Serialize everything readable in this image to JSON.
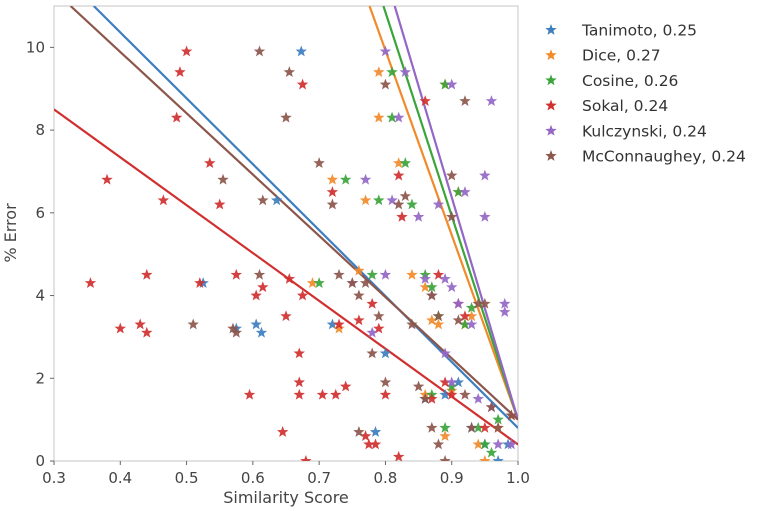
{
  "chart_data": {
    "type": "scatter",
    "title": "",
    "xlabel": "Similarity Score",
    "ylabel": "% Error",
    "xlim": [
      0.3,
      1.0
    ],
    "ylim": [
      0,
      11
    ],
    "xticks": [
      0.3,
      0.4,
      0.5,
      0.6,
      0.7,
      0.8,
      0.9,
      1.0
    ],
    "xtick_labels": [
      "0.3",
      "0.4",
      "0.5",
      "0.6",
      "0.7",
      "0.8",
      "0.9",
      "1.0"
    ],
    "yticks": [
      0,
      2,
      4,
      6,
      8,
      10
    ],
    "ytick_labels": [
      "0",
      "2",
      "4",
      "6",
      "8",
      "10"
    ],
    "grid": false,
    "legend_position": "right, outside",
    "marker": "star",
    "series": [
      {
        "name": "Tanimoto",
        "legend_label": "Tanimoto, 0.25",
        "color": "#3d7ebf",
        "fit_line": [
          [
            0.36,
            11.0
          ],
          [
            1.0,
            0.8
          ]
        ],
        "points": [
          [
            0.525,
            4.3
          ],
          [
            0.575,
            3.2
          ],
          [
            0.605,
            3.3
          ],
          [
            0.613,
            3.1
          ],
          [
            0.636,
            6.3
          ],
          [
            0.673,
            9.9
          ],
          [
            0.72,
            3.3
          ],
          [
            0.785,
            0.7
          ],
          [
            0.8,
            2.6
          ],
          [
            0.86,
            1.5
          ],
          [
            0.89,
            1.6
          ],
          [
            0.91,
            1.9
          ],
          [
            0.93,
            0.8
          ],
          [
            0.95,
            0.4
          ],
          [
            0.97,
            0.0
          ],
          [
            0.985,
            0.4
          ]
        ]
      },
      {
        "name": "Dice",
        "legend_label": "Dice, 0.27",
        "color": "#f28a2b",
        "fit_line": [
          [
            0.776,
            11.0
          ],
          [
            1.0,
            1.0
          ]
        ],
        "points": [
          [
            0.69,
            4.3
          ],
          [
            0.72,
            6.8
          ],
          [
            0.77,
            6.3
          ],
          [
            0.79,
            9.4
          ],
          [
            0.79,
            8.3
          ],
          [
            0.82,
            7.2
          ],
          [
            0.84,
            4.5
          ],
          [
            0.86,
            4.2
          ],
          [
            0.86,
            1.6
          ],
          [
            0.87,
            3.4
          ],
          [
            0.88,
            3.3
          ],
          [
            0.89,
            9.1
          ],
          [
            0.89,
            0.6
          ],
          [
            0.9,
            1.7
          ],
          [
            0.91,
            6.5
          ],
          [
            0.92,
            3.3
          ],
          [
            0.93,
            3.5
          ],
          [
            0.94,
            0.4
          ],
          [
            0.95,
            0.0
          ],
          [
            0.97,
            0.8
          ],
          [
            0.73,
            3.2
          ],
          [
            0.76,
            4.6
          ]
        ]
      },
      {
        "name": "Cosine",
        "legend_label": "Cosine, 0.26",
        "color": "#3ba43b",
        "fit_line": [
          [
            0.797,
            11.0
          ],
          [
            1.0,
            1.0
          ]
        ],
        "points": [
          [
            0.7,
            4.3
          ],
          [
            0.74,
            6.8
          ],
          [
            0.78,
            4.5
          ],
          [
            0.79,
            6.3
          ],
          [
            0.81,
            9.4
          ],
          [
            0.81,
            8.3
          ],
          [
            0.83,
            7.2
          ],
          [
            0.84,
            6.2
          ],
          [
            0.86,
            4.5
          ],
          [
            0.87,
            4.2
          ],
          [
            0.87,
            1.6
          ],
          [
            0.88,
            3.5
          ],
          [
            0.89,
            9.1
          ],
          [
            0.89,
            0.8
          ],
          [
            0.9,
            1.8
          ],
          [
            0.91,
            6.5
          ],
          [
            0.92,
            3.3
          ],
          [
            0.93,
            3.7
          ],
          [
            0.94,
            0.8
          ],
          [
            0.95,
            0.4
          ],
          [
            0.96,
            0.2
          ],
          [
            0.97,
            1.0
          ]
        ]
      },
      {
        "name": "Sokal",
        "legend_label": "Sokal, 0.24",
        "color": "#d0302f",
        "fit_line": [
          [
            0.3,
            8.5
          ],
          [
            1.0,
            0.4
          ]
        ],
        "points": [
          [
            0.355,
            4.3
          ],
          [
            0.38,
            6.8
          ],
          [
            0.4,
            3.2
          ],
          [
            0.43,
            3.3
          ],
          [
            0.44,
            4.5
          ],
          [
            0.44,
            3.1
          ],
          [
            0.465,
            6.3
          ],
          [
            0.485,
            8.3
          ],
          [
            0.49,
            9.4
          ],
          [
            0.5,
            9.9
          ],
          [
            0.52,
            4.3
          ],
          [
            0.535,
            7.2
          ],
          [
            0.55,
            6.2
          ],
          [
            0.575,
            4.5
          ],
          [
            0.595,
            1.6
          ],
          [
            0.605,
            4.0
          ],
          [
            0.615,
            4.2
          ],
          [
            0.645,
            0.7
          ],
          [
            0.65,
            3.5
          ],
          [
            0.655,
            4.4
          ],
          [
            0.67,
            2.6
          ],
          [
            0.67,
            1.9
          ],
          [
            0.67,
            1.6
          ],
          [
            0.675,
            4.0
          ],
          [
            0.675,
            9.1
          ],
          [
            0.68,
            0.0
          ],
          [
            0.705,
            1.6
          ],
          [
            0.72,
            6.5
          ],
          [
            0.725,
            1.6
          ],
          [
            0.73,
            3.3
          ],
          [
            0.74,
            1.8
          ],
          [
            0.76,
            3.4
          ],
          [
            0.77,
            0.6
          ],
          [
            0.775,
            0.4
          ],
          [
            0.78,
            3.8
          ],
          [
            0.785,
            0.4
          ],
          [
            0.79,
            3.2
          ],
          [
            0.8,
            1.6
          ],
          [
            0.82,
            6.9
          ],
          [
            0.82,
            0.1
          ],
          [
            0.825,
            5.9
          ],
          [
            0.86,
            8.7
          ],
          [
            0.87,
            1.5
          ],
          [
            0.88,
            4.5
          ],
          [
            0.89,
            1.9
          ],
          [
            0.9,
            1.6
          ],
          [
            0.91,
            3.8
          ],
          [
            0.92,
            3.5
          ],
          [
            0.95,
            0.8
          ],
          [
            0.99,
            1.1
          ]
        ]
      },
      {
        "name": "Kulczynski",
        "legend_label": "Kulczynski, 0.24",
        "color": "#9467c7",
        "fit_line": [
          [
            0.814,
            11.0
          ],
          [
            1.0,
            1.0
          ]
        ],
        "points": [
          [
            0.75,
            4.3
          ],
          [
            0.77,
            6.8
          ],
          [
            0.8,
            9.9
          ],
          [
            0.8,
            4.5
          ],
          [
            0.81,
            6.3
          ],
          [
            0.82,
            8.3
          ],
          [
            0.83,
            9.4
          ],
          [
            0.85,
            5.9
          ],
          [
            0.86,
            4.4
          ],
          [
            0.87,
            4.0
          ],
          [
            0.88,
            6.2
          ],
          [
            0.89,
            4.4
          ],
          [
            0.89,
            2.6
          ],
          [
            0.9,
            4.2
          ],
          [
            0.9,
            1.9
          ],
          [
            0.9,
            9.1
          ],
          [
            0.91,
            3.8
          ],
          [
            0.92,
            6.5
          ],
          [
            0.93,
            3.3
          ],
          [
            0.94,
            1.5
          ],
          [
            0.95,
            5.9
          ],
          [
            0.95,
            6.9
          ],
          [
            0.96,
            8.7
          ],
          [
            0.96,
            1.3
          ],
          [
            0.97,
            0.4
          ],
          [
            0.98,
            3.8
          ],
          [
            0.98,
            3.6
          ],
          [
            0.99,
            0.4
          ],
          [
            0.78,
            3.1
          ]
        ]
      },
      {
        "name": "McConnaughey",
        "legend_label": "McConnaughey, 0.24",
        "color": "#8c564b",
        "fit_line": [
          [
            0.325,
            11.0
          ],
          [
            1.0,
            1.0
          ]
        ],
        "points": [
          [
            0.51,
            3.3
          ],
          [
            0.555,
            6.8
          ],
          [
            0.57,
            3.2
          ],
          [
            0.575,
            3.1
          ],
          [
            0.61,
            9.9
          ],
          [
            0.61,
            4.5
          ],
          [
            0.615,
            6.3
          ],
          [
            0.65,
            8.3
          ],
          [
            0.655,
            9.4
          ],
          [
            0.7,
            7.2
          ],
          [
            0.72,
            6.2
          ],
          [
            0.73,
            4.5
          ],
          [
            0.75,
            4.3
          ],
          [
            0.76,
            4.0
          ],
          [
            0.76,
            0.7
          ],
          [
            0.77,
            4.3
          ],
          [
            0.78,
            2.6
          ],
          [
            0.79,
            3.5
          ],
          [
            0.8,
            1.9
          ],
          [
            0.8,
            9.1
          ],
          [
            0.82,
            6.2
          ],
          [
            0.83,
            6.4
          ],
          [
            0.84,
            3.3
          ],
          [
            0.85,
            1.8
          ],
          [
            0.86,
            1.5
          ],
          [
            0.87,
            0.8
          ],
          [
            0.88,
            0.4
          ],
          [
            0.89,
            0.0
          ],
          [
            0.9,
            5.9
          ],
          [
            0.9,
            6.9
          ],
          [
            0.91,
            3.4
          ],
          [
            0.92,
            1.6
          ],
          [
            0.92,
            8.7
          ],
          [
            0.93,
            0.8
          ],
          [
            0.94,
            3.8
          ],
          [
            0.95,
            3.8
          ],
          [
            0.96,
            1.3
          ],
          [
            0.97,
            0.8
          ],
          [
            0.99,
            1.1
          ],
          [
            0.87,
            4.0
          ],
          [
            0.88,
            3.5
          ]
        ]
      }
    ]
  }
}
